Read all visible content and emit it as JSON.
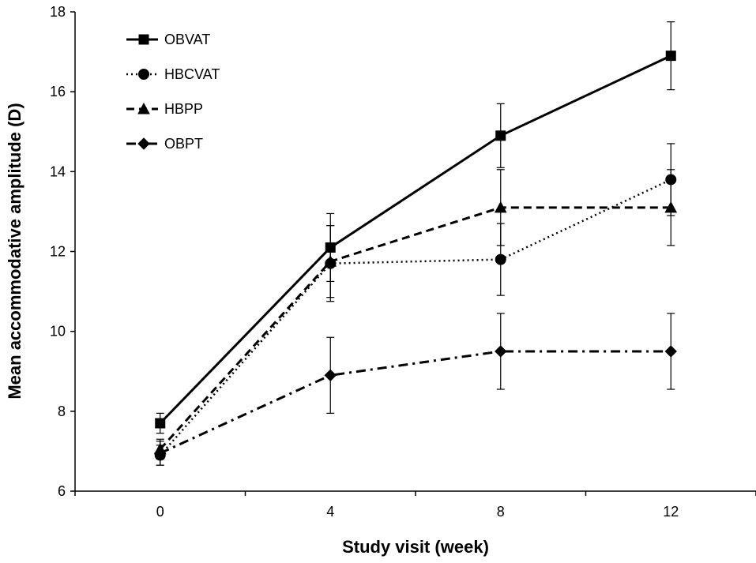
{
  "chart_data": {
    "type": "line",
    "xlabel": "Study visit (week)",
    "ylabel": "Mean accommodative amplitude (D)",
    "x": [
      0,
      4,
      8,
      12
    ],
    "x_ticks": [
      "0",
      "4",
      "8",
      "12"
    ],
    "xlim": [
      -2,
      14
    ],
    "ylim": [
      6,
      18
    ],
    "y_ticks": [
      "6",
      "8",
      "10",
      "12",
      "14",
      "16",
      "18"
    ],
    "grid": false,
    "legend_position": "top-left",
    "series": [
      {
        "name": "OBVAT",
        "values": [
          7.7,
          12.1,
          14.9,
          16.9
        ],
        "errors": [
          0.25,
          0.85,
          0.8,
          0.85
        ],
        "marker": "square",
        "line_style": "solid"
      },
      {
        "name": "HBCVAT",
        "values": [
          6.9,
          11.7,
          11.8,
          13.8
        ],
        "errors": [
          0.25,
          0.95,
          0.9,
          0.9
        ],
        "marker": "circle",
        "line_style": "dotted"
      },
      {
        "name": "HBPP",
        "values": [
          7.05,
          11.75,
          13.1,
          13.1
        ],
        "errors": [
          0.25,
          0.9,
          0.95,
          0.95
        ],
        "marker": "triangle",
        "line_style": "dashed"
      },
      {
        "name": "OBPT",
        "values": [
          6.95,
          8.9,
          9.5,
          9.5
        ],
        "errors": [
          0.3,
          0.95,
          0.95,
          0.95
        ],
        "marker": "diamond",
        "line_style": "dashdot"
      }
    ]
  }
}
